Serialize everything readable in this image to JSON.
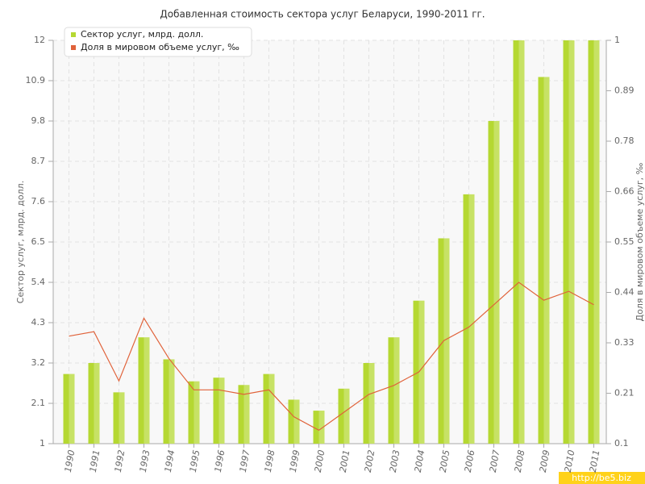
{
  "chart_data": {
    "type": "bar_line",
    "title": "Добавленная стоимость сектора услуг Беларуси, 1990-2011 гг.",
    "y_label": "Сектор услуг, млрд. долл.",
    "y2_label": "Доля в мировом объеме услуг, ‰",
    "watermark": "http://be5.biz",
    "categories": [
      "1990",
      "1991",
      "1992",
      "1993",
      "1994",
      "1995",
      "1996",
      "1997",
      "1998",
      "1999",
      "2000",
      "2001",
      "2002",
      "2003",
      "2004",
      "2005",
      "2006",
      "2007",
      "2008",
      "2009",
      "2010",
      "2011"
    ],
    "series": [
      {
        "name": "Сектор услуг, млрд. долл.",
        "type": "bar",
        "color": "#b5d832",
        "values": [
          2.9,
          3.2,
          2.4,
          3.9,
          3.3,
          2.7,
          2.8,
          2.6,
          2.9,
          2.2,
          1.9,
          2.5,
          3.2,
          3.9,
          4.9,
          6.6,
          7.8,
          9.8,
          12,
          11,
          12,
          12
        ]
      },
      {
        "name": "Доля в мировом объеме услуг, ‰",
        "type": "line",
        "axis": "y2",
        "color": "#e0623a",
        "values": [
          0.34,
          0.35,
          0.24,
          0.38,
          0.29,
          0.22,
          0.22,
          0.21,
          0.22,
          0.16,
          0.13,
          0.17,
          0.21,
          0.23,
          0.26,
          0.33,
          0.36,
          0.41,
          0.46,
          0.42,
          0.44,
          0.41
        ]
      }
    ],
    "ylim": [
      1,
      12
    ],
    "yticks": [
      1,
      2.1,
      3.2,
      4.3,
      5.4,
      6.5,
      7.6,
      8.7,
      9.8,
      10.9,
      12
    ],
    "y2lim": [
      0.1,
      1
    ],
    "y2ticks": [
      0.1,
      {
        "value": 0.2125,
        "label": "0.21"
      },
      {
        "value": 0.325,
        "label": "0.33"
      },
      {
        "value": 0.4375,
        "label": "0.44"
      },
      0.55,
      {
        "value": 0.6625,
        "label": "0.66"
      },
      {
        "value": 0.775,
        "label": "0.78"
      },
      {
        "value": 0.8875,
        "label": "0.89"
      },
      1
    ],
    "grid": true,
    "legend": "top-left"
  }
}
